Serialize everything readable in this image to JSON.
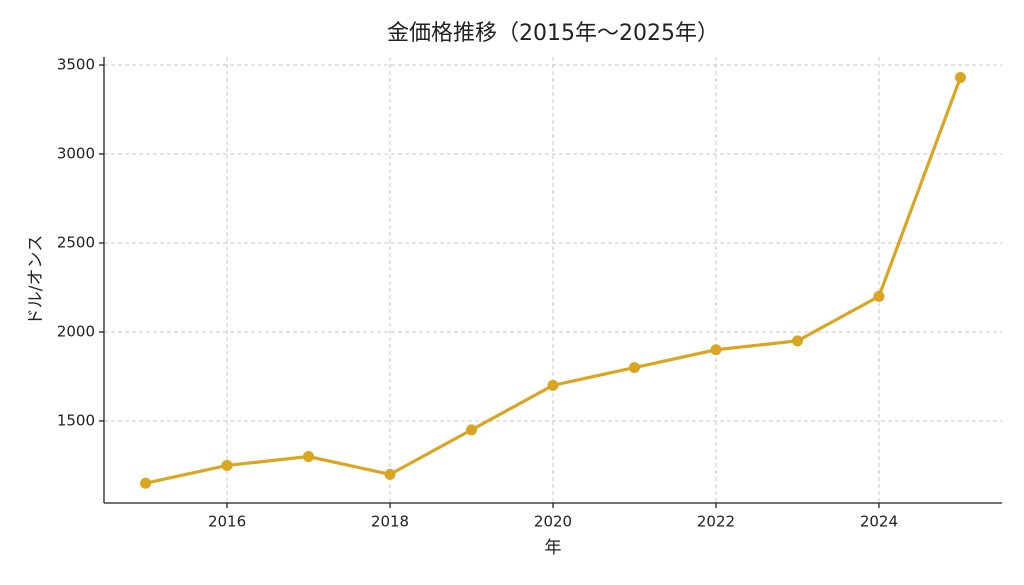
{
  "chart_data": {
    "type": "line",
    "title": "金価格推移（2015年〜2025年）",
    "x_label": "年",
    "y_label": "ドル/オンス",
    "x": [
      2015,
      2016,
      2017,
      2018,
      2019,
      2020,
      2021,
      2022,
      2023,
      2024,
      2025
    ],
    "series": [
      {
        "name": "金価格",
        "color": "#daa520",
        "values": [
          1150,
          1250,
          1300,
          1200,
          1450,
          1700,
          1800,
          1900,
          1950,
          2200,
          3430
        ]
      }
    ],
    "xlim": [
      2014.49,
      2025.51
    ],
    "xticks": [
      2016,
      2018,
      2020,
      2022,
      2024
    ],
    "ylim": [
      1039,
      3545
    ],
    "yticks": [
      1500,
      2000,
      2500,
      3000,
      3500
    ],
    "grid": true,
    "legend": false
  }
}
